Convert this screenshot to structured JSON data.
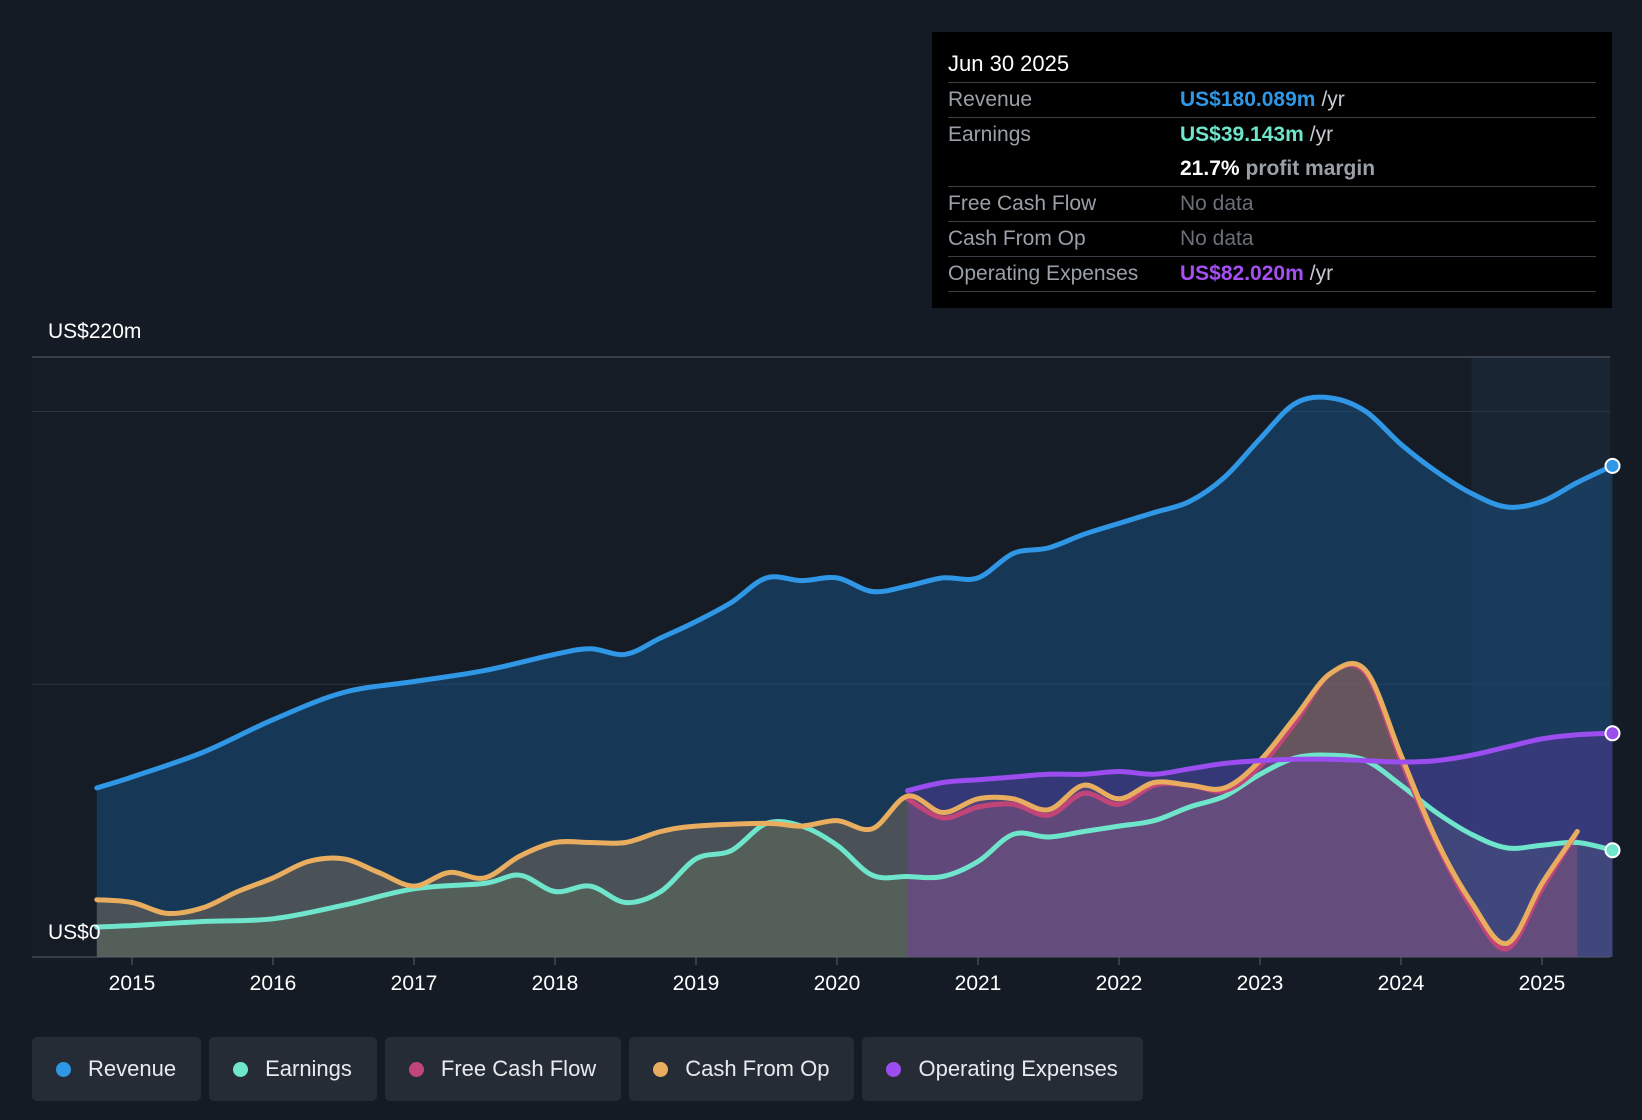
{
  "tooltip": {
    "date": "Jun 30 2025",
    "rows": [
      {
        "label": "Revenue",
        "value": "US$180.089m",
        "unit": "/yr"
      },
      {
        "label": "Earnings",
        "value": "US$39.143m",
        "unit": "/yr"
      },
      {
        "label": "",
        "value": "21.7%",
        "unit": "profit margin"
      },
      {
        "label": "Free Cash Flow",
        "value": "No data",
        "unit": ""
      },
      {
        "label": "Cash From Op",
        "value": "No data",
        "unit": ""
      },
      {
        "label": "Operating Expenses",
        "value": "US$82.020m",
        "unit": "/yr"
      }
    ]
  },
  "legend": [
    {
      "label": "Revenue",
      "color": "#2f97e6"
    },
    {
      "label": "Earnings",
      "color": "#6fe5cb"
    },
    {
      "label": "Free Cash Flow",
      "color": "#c2457a"
    },
    {
      "label": "Cash From Op",
      "color": "#e8ad5f"
    },
    {
      "label": "Operating Expenses",
      "color": "#9b4df0"
    }
  ],
  "chart_data": {
    "type": "area",
    "y_top_label": "US$220m",
    "y_bottom_label": "US$0",
    "ylim": [
      0,
      220
    ],
    "x_ticks": [
      "2015",
      "2016",
      "2017",
      "2018",
      "2019",
      "2020",
      "2021",
      "2022",
      "2023",
      "2024",
      "2025"
    ],
    "series": [
      {
        "name": "Revenue",
        "color": "#2f97e6",
        "points": [
          [
            2014.75,
            62
          ],
          [
            2015.0,
            66
          ],
          [
            2015.5,
            75
          ],
          [
            2016.0,
            87
          ],
          [
            2016.5,
            97
          ],
          [
            2017.0,
            101
          ],
          [
            2017.5,
            105
          ],
          [
            2018.0,
            111
          ],
          [
            2018.25,
            113
          ],
          [
            2018.5,
            111
          ],
          [
            2018.75,
            117
          ],
          [
            2019.0,
            123
          ],
          [
            2019.25,
            130
          ],
          [
            2019.5,
            139
          ],
          [
            2019.75,
            138
          ],
          [
            2020.0,
            139
          ],
          [
            2020.25,
            134
          ],
          [
            2020.5,
            136
          ],
          [
            2020.75,
            139
          ],
          [
            2021.0,
            139
          ],
          [
            2021.25,
            148
          ],
          [
            2021.5,
            150
          ],
          [
            2021.75,
            155
          ],
          [
            2022.0,
            159
          ],
          [
            2022.25,
            163
          ],
          [
            2022.5,
            167
          ],
          [
            2022.75,
            176
          ],
          [
            2023.0,
            190
          ],
          [
            2023.25,
            203
          ],
          [
            2023.5,
            205
          ],
          [
            2023.75,
            200
          ],
          [
            2024.0,
            188
          ],
          [
            2024.25,
            178
          ],
          [
            2024.5,
            170
          ],
          [
            2024.75,
            165
          ],
          [
            2025.0,
            167
          ],
          [
            2025.25,
            174
          ],
          [
            2025.5,
            180.089
          ]
        ]
      },
      {
        "name": "Earnings",
        "color": "#6fe5cb",
        "points": [
          [
            2014.75,
            11
          ],
          [
            2015.0,
            11.5
          ],
          [
            2015.5,
            13
          ],
          [
            2016.0,
            14
          ],
          [
            2016.5,
            19
          ],
          [
            2017.0,
            25
          ],
          [
            2017.5,
            27
          ],
          [
            2017.75,
            30
          ],
          [
            2018.0,
            24
          ],
          [
            2018.25,
            26
          ],
          [
            2018.5,
            20
          ],
          [
            2018.75,
            24
          ],
          [
            2019.0,
            36
          ],
          [
            2019.25,
            39
          ],
          [
            2019.5,
            49
          ],
          [
            2019.75,
            48
          ],
          [
            2020.0,
            41
          ],
          [
            2020.25,
            30
          ],
          [
            2020.5,
            29.5
          ],
          [
            2020.75,
            29.5
          ],
          [
            2021.0,
            35
          ],
          [
            2021.25,
            45
          ],
          [
            2021.5,
            44
          ],
          [
            2021.75,
            46
          ],
          [
            2022.0,
            48
          ],
          [
            2022.25,
            50
          ],
          [
            2022.5,
            55
          ],
          [
            2022.75,
            59
          ],
          [
            2023.0,
            67
          ],
          [
            2023.25,
            73
          ],
          [
            2023.5,
            74
          ],
          [
            2023.75,
            72
          ],
          [
            2024.0,
            63
          ],
          [
            2024.25,
            53
          ],
          [
            2024.5,
            45
          ],
          [
            2024.75,
            40
          ],
          [
            2025.0,
            41
          ],
          [
            2025.25,
            42
          ],
          [
            2025.5,
            39.143
          ]
        ]
      },
      {
        "name": "Free Cash Flow",
        "color": "#c2457a",
        "points": [
          [
            2020.5,
            58
          ],
          [
            2020.75,
            51
          ],
          [
            2021.0,
            55
          ],
          [
            2021.25,
            56
          ],
          [
            2021.5,
            52
          ],
          [
            2021.75,
            60
          ],
          [
            2022.0,
            56
          ],
          [
            2022.25,
            63
          ],
          [
            2022.5,
            63
          ],
          [
            2022.75,
            61
          ],
          [
            2023.0,
            70
          ],
          [
            2023.25,
            86
          ],
          [
            2023.5,
            104
          ],
          [
            2023.75,
            104
          ],
          [
            2024.0,
            72
          ],
          [
            2024.25,
            42
          ],
          [
            2024.5,
            18
          ],
          [
            2024.75,
            3
          ],
          [
            2025.0,
            25
          ],
          [
            2025.25,
            46
          ]
        ]
      },
      {
        "name": "Cash From Op",
        "color": "#e8ad5f",
        "points": [
          [
            2014.75,
            21
          ],
          [
            2015.0,
            20
          ],
          [
            2015.25,
            16
          ],
          [
            2015.5,
            18
          ],
          [
            2015.75,
            24
          ],
          [
            2016.0,
            29
          ],
          [
            2016.25,
            35
          ],
          [
            2016.5,
            36
          ],
          [
            2016.75,
            31
          ],
          [
            2017.0,
            26
          ],
          [
            2017.25,
            31
          ],
          [
            2017.5,
            29
          ],
          [
            2017.75,
            37
          ],
          [
            2018.0,
            42
          ],
          [
            2018.25,
            42
          ],
          [
            2018.5,
            42
          ],
          [
            2018.75,
            46
          ],
          [
            2019.0,
            48
          ],
          [
            2019.5,
            49
          ],
          [
            2019.75,
            48
          ],
          [
            2020.0,
            50
          ],
          [
            2020.25,
            47
          ],
          [
            2020.5,
            59
          ],
          [
            2020.75,
            53
          ],
          [
            2021.0,
            58
          ],
          [
            2021.25,
            58
          ],
          [
            2021.5,
            54
          ],
          [
            2021.75,
            63
          ],
          [
            2022.0,
            58
          ],
          [
            2022.25,
            64
          ],
          [
            2022.5,
            63
          ],
          [
            2022.75,
            62
          ],
          [
            2023.0,
            72
          ],
          [
            2023.25,
            88
          ],
          [
            2023.5,
            104
          ],
          [
            2023.75,
            105
          ],
          [
            2024.0,
            74
          ],
          [
            2024.25,
            43
          ],
          [
            2024.5,
            20
          ],
          [
            2024.75,
            5
          ],
          [
            2025.0,
            27
          ],
          [
            2025.25,
            46
          ]
        ]
      },
      {
        "name": "Operating Expenses",
        "color": "#9b4df0",
        "points": [
          [
            2020.5,
            61
          ],
          [
            2020.75,
            64
          ],
          [
            2021.0,
            65
          ],
          [
            2021.25,
            66
          ],
          [
            2021.5,
            67
          ],
          [
            2021.75,
            67
          ],
          [
            2022.0,
            68
          ],
          [
            2022.25,
            67
          ],
          [
            2022.5,
            69
          ],
          [
            2022.75,
            71
          ],
          [
            2023.0,
            72
          ],
          [
            2023.25,
            72.5
          ],
          [
            2023.5,
            72.5
          ],
          [
            2023.75,
            72
          ],
          [
            2024.0,
            71.5
          ],
          [
            2024.25,
            72
          ],
          [
            2024.5,
            74
          ],
          [
            2024.75,
            77
          ],
          [
            2025.0,
            80
          ],
          [
            2025.25,
            81.5
          ],
          [
            2025.5,
            82.02
          ]
        ]
      }
    ]
  }
}
